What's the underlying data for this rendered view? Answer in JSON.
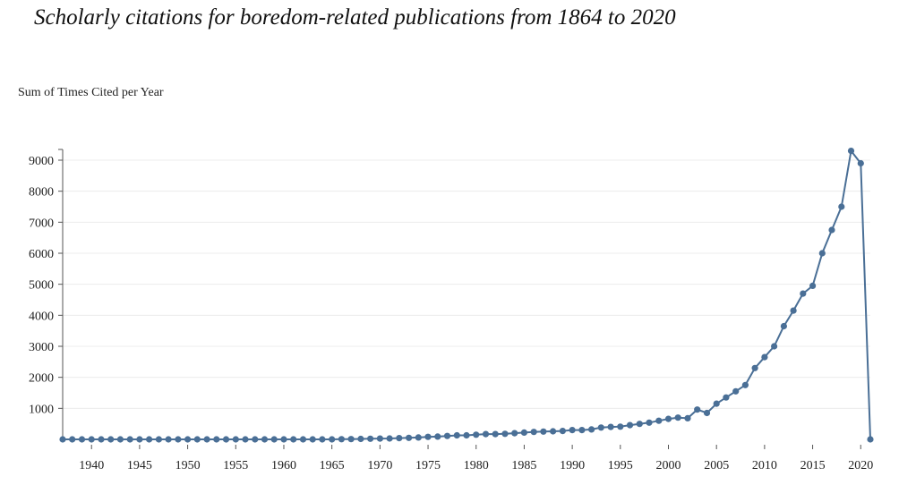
{
  "chart_data": {
    "type": "line",
    "title": "Scholarly citations for boredom-related publications from 1864 to 2020",
    "ylabel": "Sum of Times Cited per Year",
    "xlabel": "",
    "ylim": [
      0,
      9000
    ],
    "xlim": [
      1937,
      2021
    ],
    "grid": true,
    "series_color": "#4a6f96",
    "y_ticks": [
      "1000",
      "2000",
      "3000",
      "4000",
      "5000",
      "6000",
      "7000",
      "8000",
      "9000"
    ],
    "x_ticks": [
      "1940",
      "1945",
      "1950",
      "1955",
      "1960",
      "1965",
      "1970",
      "1975",
      "1980",
      "1985",
      "1990",
      "1995",
      "2000",
      "2005",
      "2010",
      "2015",
      "2020"
    ],
    "x": [
      1937,
      1938,
      1939,
      1940,
      1941,
      1942,
      1943,
      1944,
      1945,
      1946,
      1947,
      1948,
      1949,
      1950,
      1951,
      1952,
      1953,
      1954,
      1955,
      1956,
      1957,
      1958,
      1959,
      1960,
      1961,
      1962,
      1963,
      1964,
      1965,
      1966,
      1967,
      1968,
      1969,
      1970,
      1971,
      1972,
      1973,
      1974,
      1975,
      1976,
      1977,
      1978,
      1979,
      1980,
      1981,
      1982,
      1983,
      1984,
      1985,
      1986,
      1987,
      1988,
      1989,
      1990,
      1991,
      1992,
      1993,
      1994,
      1995,
      1996,
      1997,
      1998,
      1999,
      2000,
      2001,
      2002,
      2003,
      2004,
      2005,
      2006,
      2007,
      2008,
      2009,
      2010,
      2011,
      2012,
      2013,
      2014,
      2015,
      2016,
      2017,
      2018,
      2019,
      2020,
      2021
    ],
    "values": [
      0,
      0,
      0,
      0,
      0,
      0,
      0,
      0,
      0,
      0,
      0,
      0,
      0,
      0,
      0,
      0,
      0,
      0,
      0,
      0,
      0,
      0,
      0,
      0,
      0,
      0,
      0,
      0,
      0,
      5,
      10,
      15,
      20,
      25,
      30,
      40,
      50,
      60,
      80,
      90,
      110,
      130,
      130,
      150,
      170,
      170,
      180,
      200,
      220,
      240,
      250,
      260,
      270,
      300,
      300,
      320,
      380,
      400,
      410,
      460,
      500,
      540,
      600,
      660,
      700,
      680,
      960,
      850,
      1150,
      1350,
      1550,
      1750,
      2300,
      2650,
      3000,
      3650,
      4150,
      4700,
      4950,
      6000,
      6750,
      7500,
      9300,
      8900,
      0
    ]
  }
}
